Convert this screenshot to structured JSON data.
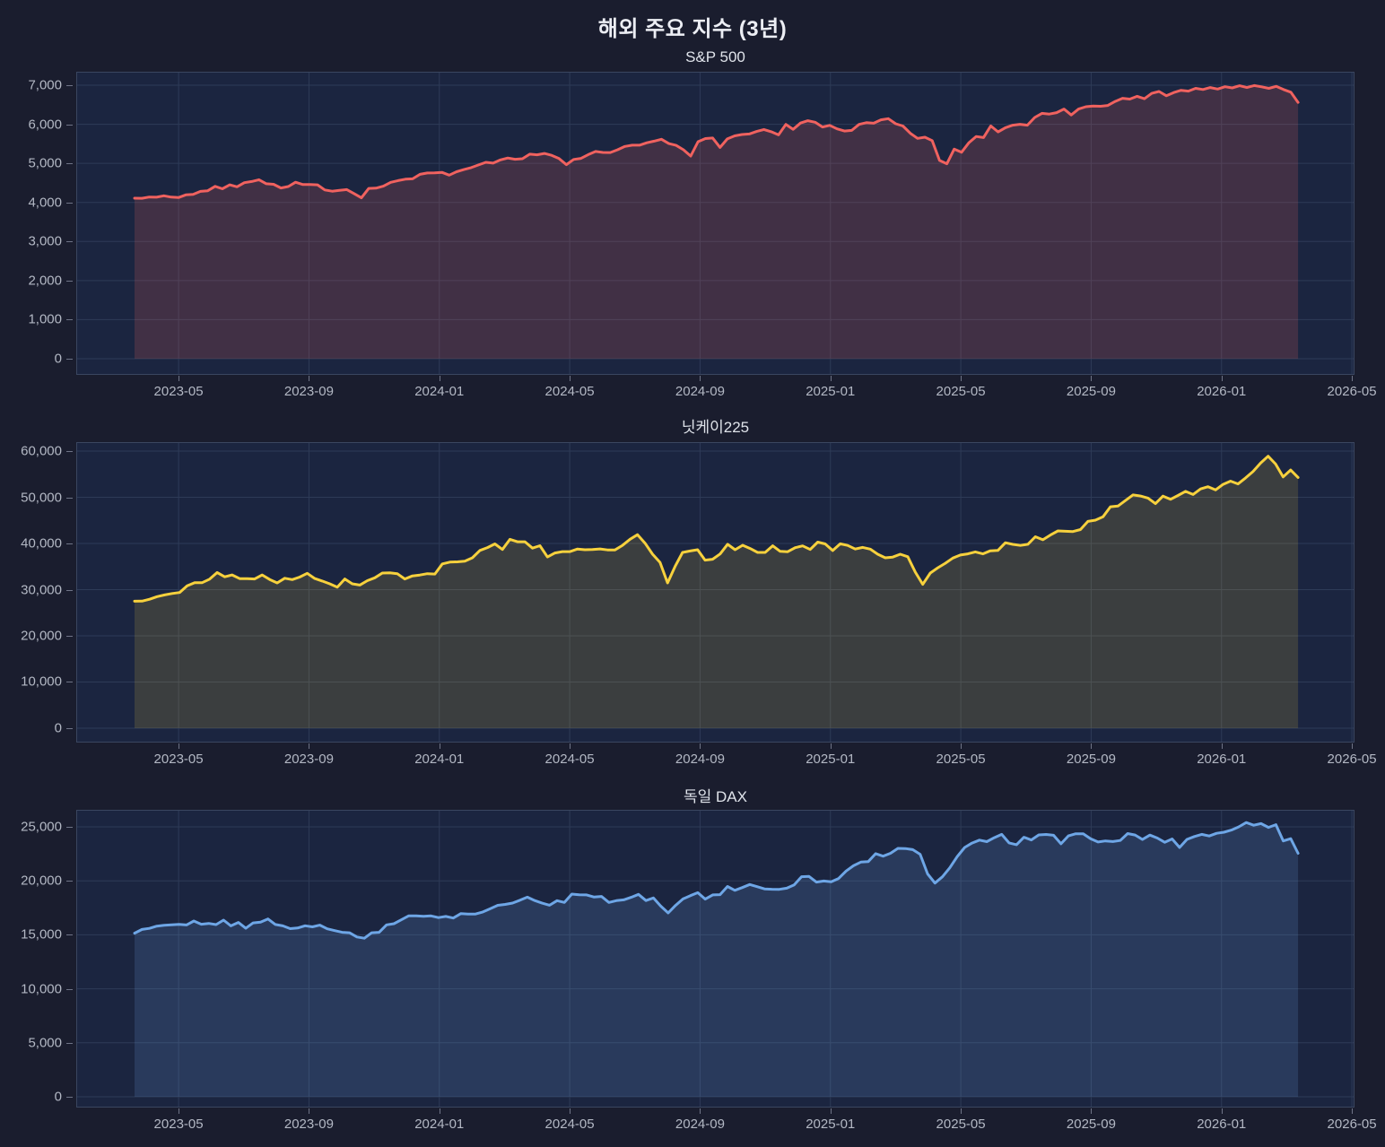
{
  "page_title": "해외 주요 지수 (3년)",
  "colors": {
    "outer_bg": "#1a1d2e",
    "plot_bg": "#1b2540",
    "grid": "#2e3b57",
    "plot_border": "#3a4660",
    "tick_mark": "#6f7487",
    "tick_label": "#b3b8c4",
    "title": "#eceef4",
    "subtitle": "#dfe3ea",
    "sp500_line": "#f0625f",
    "nikkei_line": "#f7d13d",
    "dax_line": "#6ea6e6"
  },
  "x_axis": {
    "domain_months": [
      0.86,
      40.08
    ],
    "ticks": [
      {
        "label": "2023-05",
        "m": 4
      },
      {
        "label": "2023-09",
        "m": 8
      },
      {
        "label": "2024-01",
        "m": 12
      },
      {
        "label": "2024-05",
        "m": 16
      },
      {
        "label": "2024-09",
        "m": 20
      },
      {
        "label": "2025-01",
        "m": 24
      },
      {
        "label": "2025-05",
        "m": 28
      },
      {
        "label": "2025-09",
        "m": 32
      },
      {
        "label": "2026-01",
        "m": 36
      },
      {
        "label": "2026-05",
        "m": 40
      }
    ]
  },
  "chart_data": [
    {
      "type": "area",
      "title": "S&P 500",
      "xlabel": "",
      "ylabel": "",
      "legend": "none",
      "grid": true,
      "line_color": "#f0625f",
      "fill_color": "rgba(240,98,95,0.18)",
      "y_domain": [
        -413,
        7344
      ],
      "y_ticks": [
        {
          "label": "0",
          "v": 0
        },
        {
          "label": "1,000",
          "v": 1000
        },
        {
          "label": "2,000",
          "v": 2000
        },
        {
          "label": "3,000",
          "v": 3000
        },
        {
          "label": "4,000",
          "v": 4000
        },
        {
          "label": "5,000",
          "v": 5000
        },
        {
          "label": "6,000",
          "v": 6000
        },
        {
          "label": "7,000",
          "v": 7000
        }
      ],
      "x_range_months": [
        2.65,
        38.35
      ],
      "values": [
        4109,
        4105,
        4138,
        4134,
        4169,
        4136,
        4124,
        4192,
        4205,
        4282,
        4299,
        4410,
        4348,
        4450,
        4399,
        4505,
        4536,
        4582,
        4478,
        4464,
        4370,
        4406,
        4516,
        4458,
        4457,
        4450,
        4320,
        4288,
        4308,
        4328,
        4224,
        4117,
        4358,
        4365,
        4415,
        4514,
        4559,
        4594,
        4604,
        4719,
        4754,
        4755,
        4770,
        4697,
        4784,
        4840,
        4891,
        4959,
        5027,
        5006,
        5089,
        5137,
        5104,
        5117,
        5234,
        5218,
        5254,
        5204,
        5123,
        4967,
        5100,
        5128,
        5223,
        5303,
        5278,
        5277,
        5347,
        5432,
        5465,
        5465,
        5527,
        5567,
        5615,
        5505,
        5459,
        5347,
        5186,
        5554,
        5635,
        5648,
        5408,
        5626,
        5703,
        5738,
        5751,
        5815,
        5865,
        5808,
        5729,
        5996,
        5870,
        6032,
        6090,
        6051,
        5931,
        5971,
        5882,
        5827,
        5842,
        5996,
        6041,
        6026,
        6115,
        6144,
        6013,
        5955,
        5770,
        5639,
        5668,
        5581,
        5074,
        4990,
        5363,
        5283,
        5525,
        5687,
        5660,
        5958,
        5803,
        5912,
        5977,
        6000,
        5977,
        6173,
        6280,
        6260,
        6297,
        6389,
        6238,
        6389,
        6450,
        6467,
        6460,
        6482,
        6584,
        6664,
        6644,
        6716,
        6654,
        6792,
        6840,
        6729,
        6812,
        6870,
        6849,
        6920,
        6890,
        6940,
        6902,
        6961,
        6930,
        6985,
        6940,
        6990,
        6958,
        6920,
        6970,
        6890,
        6820,
        6560
      ]
    },
    {
      "type": "area",
      "title": "닛케이225",
      "xlabel": "",
      "ylabel": "",
      "legend": "none",
      "grid": true,
      "line_color": "#f7d13d",
      "fill_color": "rgba(247,209,61,0.15)",
      "y_domain": [
        -3107,
        61942
      ],
      "y_ticks": [
        {
          "label": "0",
          "v": 0
        },
        {
          "label": "10,000",
          "v": 10000
        },
        {
          "label": "20,000",
          "v": 20000
        },
        {
          "label": "30,000",
          "v": 30000
        },
        {
          "label": "40,000",
          "v": 40000
        },
        {
          "label": "50,000",
          "v": 50000
        },
        {
          "label": "60,000",
          "v": 60000
        }
      ],
      "x_range_months": [
        2.65,
        38.35
      ],
      "values": [
        27500,
        27518,
        27923,
        28493,
        28856,
        29158,
        29388,
        30808,
        31524,
        31524,
        32265,
        33706,
        32781,
        33189,
        32388,
        32391,
        32304,
        33189,
        32193,
        31451,
        32474,
        32169,
        32711,
        33533,
        32402,
        31858,
        31260,
        30527,
        32315,
        31259,
        30992,
        31950,
        32568,
        33585,
        33626,
        33447,
        32308,
        32971,
        33169,
        33464,
        33377,
        35577,
        35963,
        36011,
        36158,
        36897,
        38487,
        39099,
        39910,
        38708,
        40888,
        40370,
        40369,
        38992,
        39523,
        37068,
        37935,
        38236,
        38229,
        38787,
        38646,
        38683,
        38814,
        38596,
        38596,
        39583,
        40912,
        41900,
        40064,
        37667,
        35910,
        31458,
        35025,
        38062,
        38364,
        38648,
        36391,
        36582,
        37724,
        39830,
        38636,
        39606,
        38912,
        38054,
        38053,
        39501,
        38284,
        38208,
        39091,
        39470,
        38702,
        40282,
        39895,
        38474,
        39932,
        39572,
        38787,
        39149,
        38776,
        37676,
        36887,
        37053,
        37677,
        37120,
        33781,
        31136,
        33586,
        34730,
        35706,
        36830,
        37504,
        37754,
        38183,
        37742,
        38403,
        38486,
        40151,
        39811,
        39570,
        39819,
        41456,
        40800,
        41820,
        42718,
        42633,
        42580,
        43018,
        44768,
        45045,
        45770,
        47945,
        48088,
        49299,
        50512,
        50276,
        49823,
        48626,
        50253,
        49560,
        50380,
        51280,
        50600,
        51800,
        52300,
        51600,
        52800,
        53500,
        52900,
        54200,
        55600,
        57400,
        58900,
        57200,
        54400,
        55900,
        54300
      ]
    },
    {
      "type": "area",
      "title": "독일 DAX",
      "xlabel": "",
      "ylabel": "",
      "legend": "none",
      "grid": true,
      "line_color": "#6ea6e6",
      "fill_color": "rgba(110,166,230,0.17)",
      "y_domain": [
        -997,
        26578
      ],
      "y_ticks": [
        {
          "label": "0",
          "v": 0
        },
        {
          "label": "5,000",
          "v": 5000
        },
        {
          "label": "10,000",
          "v": 10000
        },
        {
          "label": "15,000",
          "v": 15000
        },
        {
          "label": "20,000",
          "v": 20000
        },
        {
          "label": "25,000",
          "v": 25000
        }
      ],
      "x_range_months": [
        2.65,
        38.35
      ],
      "values": [
        15150,
        15500,
        15598,
        15808,
        15882,
        15922,
        15961,
        15914,
        16275,
        15984,
        16051,
        15950,
        16358,
        15830,
        16148,
        15603,
        16105,
        16177,
        16470,
        15952,
        15832,
        15574,
        15632,
        15840,
        15740,
        15894,
        15557,
        15387,
        15230,
        15187,
        14798,
        14687,
        15189,
        15234,
        15919,
        16029,
        16398,
        16759,
        16751,
        16707,
        16752,
        16594,
        16705,
        16555,
        16961,
        16918,
        16926,
        17117,
        17419,
        17735,
        17815,
        17937,
        18205,
        18492,
        18175,
        17930,
        17737,
        18161,
        18001,
        18773,
        18704,
        18693,
        18498,
        18557,
        18002,
        18164,
        18235,
        18475,
        18748,
        18172,
        18417,
        17661,
        17025,
        17722,
        18322,
        18633,
        18907,
        18302,
        18699,
        18720,
        19474,
        19121,
        19374,
        19657,
        19464,
        19255,
        19215,
        19211,
        19322,
        19626,
        20385,
        20406,
        19885,
        19984,
        19906,
        20215,
        20903,
        21395,
        21732,
        21787,
        22513,
        22288,
        22551,
        23009,
        22987,
        22892,
        22462,
        20642,
        19789,
        20374,
        21206,
        22242,
        23087,
        23499,
        23767,
        23630,
        23997,
        24304,
        23516,
        23350,
        24033,
        23787,
        24255,
        24290,
        24218,
        23426,
        24163,
        24359,
        24363,
        23902,
        23597,
        23698,
        23639,
        23739,
        24378,
        24241,
        23831,
        24239,
        23958,
        23569,
        23876,
        23092,
        23837,
        24100,
        24300,
        24150,
        24400,
        24500,
        24700,
        25000,
        25400,
        25150,
        25300,
        24950,
        25200,
        23700,
        23900,
        22550
      ]
    }
  ]
}
